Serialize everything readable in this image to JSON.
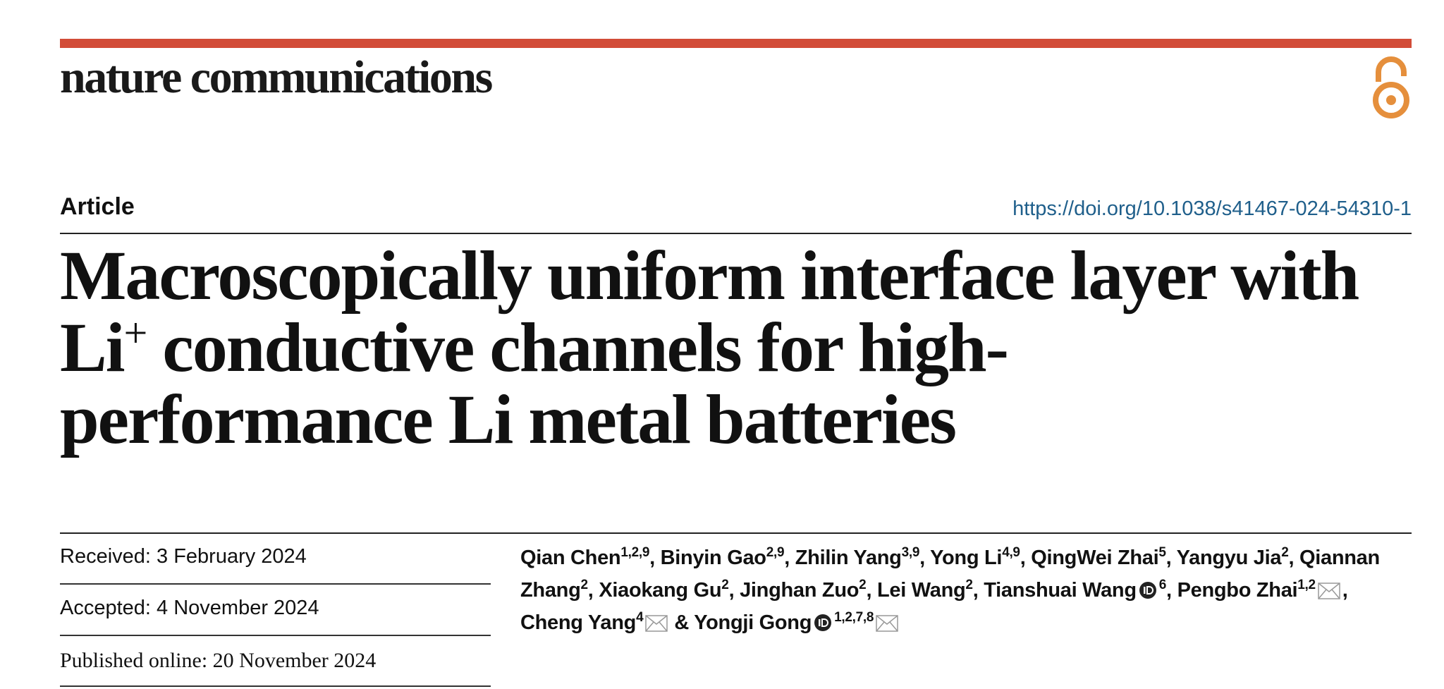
{
  "header": {
    "journal": "nature communications",
    "article_type": "Article",
    "doi": "https://doi.org/10.1038/s41467-024-54310-1"
  },
  "title": {
    "line1": "Macroscopically uniform interface layer with",
    "line2_before": "Li",
    "line2_sup": "+",
    "line2_after": " conductive channels for high-",
    "line3": "performance Li metal batteries"
  },
  "dates": {
    "received": "Received: 3 February 2024",
    "accepted": "Accepted: 4 November 2024",
    "published": "Published online: 20 November 2024"
  },
  "authors": [
    {
      "name": "Qian Chen",
      "affiliations": "1,2,9",
      "suffix": ","
    },
    {
      "name": "Binyin Gao",
      "affiliations": "2,9",
      "suffix": ","
    },
    {
      "name": "Zhilin Yang",
      "affiliations": "3,9",
      "suffix": ","
    },
    {
      "name": "Yong Li",
      "affiliations": "4,9",
      "suffix": ","
    },
    {
      "name": "QingWei Zhai",
      "affiliations": "5",
      "suffix": ","
    },
    {
      "name": "Yangyu Jia",
      "affiliations": "2",
      "suffix": ","
    },
    {
      "name": "Qiannan Zhang",
      "affiliations": "2",
      "suffix": ","
    },
    {
      "name": "Xiaokang Gu",
      "affiliations": "2",
      "suffix": ","
    },
    {
      "name": "Jinghan Zuo",
      "affiliations": "2",
      "suffix": ","
    },
    {
      "name": "Lei Wang",
      "affiliations": "2",
      "suffix": ","
    },
    {
      "name": "Tianshuai Wang",
      "affiliations": "6",
      "orcid": true,
      "suffix": ","
    },
    {
      "name": "Pengbo Zhai",
      "affiliations": "1,2",
      "corresponding": true,
      "suffix": ","
    },
    {
      "name": "Cheng Yang",
      "affiliations": "4",
      "corresponding": true,
      "suffix": "&"
    },
    {
      "name": "Yongji Gong",
      "affiliations": "1,2,7,8",
      "orcid": true,
      "corresponding": true
    }
  ]
}
